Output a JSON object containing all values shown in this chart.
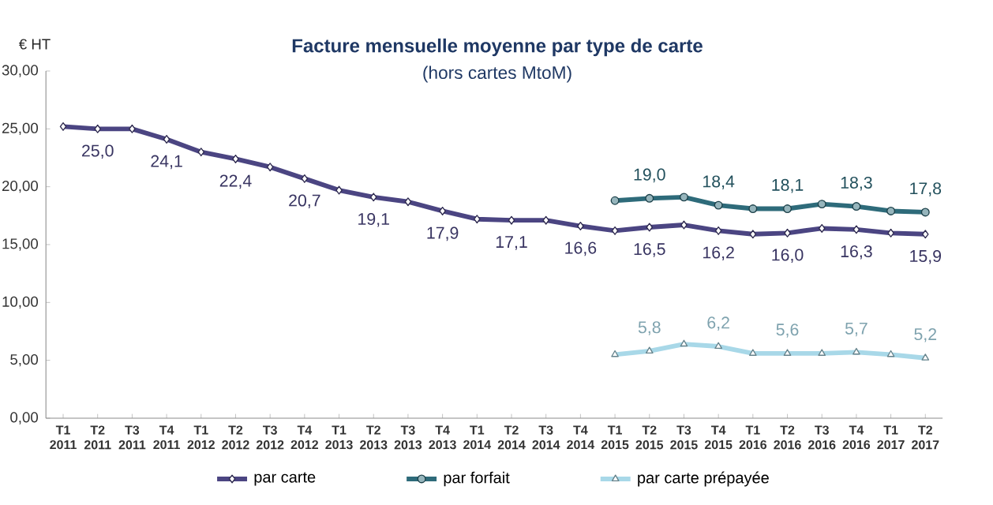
{
  "chart_data": {
    "type": "line",
    "title": "Facture mensuelle moyenne par type de carte",
    "subtitle": "(hors cartes MtoM)",
    "ylabel": "€ HT",
    "categories": [
      "T1 2011",
      "T2 2011",
      "T3 2011",
      "T4 2011",
      "T1 2012",
      "T2 2012",
      "T3 2012",
      "T4 2012",
      "T1 2013",
      "T2 2013",
      "T3 2013",
      "T4 2013",
      "T1 2014",
      "T2 2014",
      "T3 2014",
      "T4 2014",
      "T1 2015",
      "T2 2015",
      "T3 2015",
      "T4 2015",
      "T1 2016",
      "T2 2016",
      "T3 2016",
      "T4 2016",
      "T1 2017",
      "T2 2017"
    ],
    "ylim": [
      0,
      30
    ],
    "yticks": [
      {
        "value": 0,
        "label": "0,00"
      },
      {
        "value": 5,
        "label": "5,00"
      },
      {
        "value": 10,
        "label": "10,00"
      },
      {
        "value": 15,
        "label": "15,00"
      },
      {
        "value": 20,
        "label": "20,00"
      },
      {
        "value": 25,
        "label": "25,00"
      },
      {
        "value": 30,
        "label": "30,00"
      }
    ],
    "legend": "bottom",
    "series": [
      {
        "name": "par carte",
        "color": "#4b4582",
        "marker": "diamond",
        "values": [
          25.2,
          25.0,
          25.0,
          24.1,
          23.0,
          22.4,
          21.7,
          20.7,
          19.7,
          19.1,
          18.7,
          17.9,
          17.2,
          17.1,
          17.1,
          16.6,
          16.2,
          16.5,
          16.7,
          16.2,
          15.9,
          16.0,
          16.4,
          16.3,
          16.0,
          15.9
        ],
        "value_labels": [
          null,
          "25,0",
          null,
          "24,1",
          null,
          "22,4",
          null,
          "20,7",
          null,
          "19,1",
          null,
          "17,9",
          null,
          "17,1",
          null,
          "16,6",
          null,
          "16,5",
          null,
          "16,2",
          null,
          "16,0",
          null,
          "16,3",
          null,
          "15,9"
        ]
      },
      {
        "name": "par forfait",
        "color": "#2e6b7a",
        "marker": "circle",
        "values": [
          null,
          null,
          null,
          null,
          null,
          null,
          null,
          null,
          null,
          null,
          null,
          null,
          null,
          null,
          null,
          null,
          18.8,
          19.0,
          19.1,
          18.4,
          18.1,
          18.1,
          18.5,
          18.3,
          17.9,
          17.8
        ],
        "value_labels": [
          null,
          null,
          null,
          null,
          null,
          null,
          null,
          null,
          null,
          null,
          null,
          null,
          null,
          null,
          null,
          null,
          null,
          "19,0",
          null,
          "18,4",
          null,
          "18,1",
          null,
          "18,3",
          null,
          "17,8"
        ]
      },
      {
        "name": "par carte prépayée",
        "color": "#a8d8e8",
        "marker": "triangle",
        "values": [
          null,
          null,
          null,
          null,
          null,
          null,
          null,
          null,
          null,
          null,
          null,
          null,
          null,
          null,
          null,
          null,
          5.5,
          5.8,
          6.4,
          6.2,
          5.6,
          5.6,
          5.6,
          5.7,
          5.5,
          5.2
        ],
        "value_labels": [
          null,
          null,
          null,
          null,
          null,
          null,
          null,
          null,
          null,
          null,
          null,
          null,
          null,
          null,
          null,
          null,
          null,
          "5,8",
          null,
          "6,2",
          null,
          "5,6",
          null,
          "5,7",
          null,
          "5,2"
        ]
      }
    ]
  }
}
